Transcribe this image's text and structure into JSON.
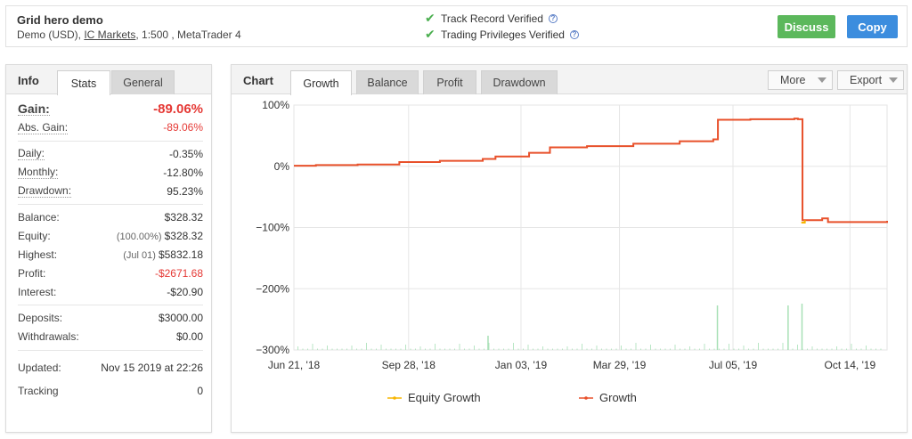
{
  "header": {
    "title": "Grid hero demo",
    "sub_prefix": "Demo (USD), ",
    "broker": "IC Markets",
    "sub_suffix": ", 1:500 , MetaTrader 4",
    "verified1": "Track Record Verified",
    "verified2": "Trading Privileges Verified",
    "discuss": "Discuss",
    "copy": "Copy"
  },
  "info": {
    "tab_head": "Info",
    "tabs": [
      "Stats",
      "General"
    ],
    "gain_label": "Gain:",
    "gain": "-89.06%",
    "abs_gain_label": "Abs. Gain:",
    "abs_gain": "-89.06%",
    "daily_label": "Daily:",
    "daily": "-0.35%",
    "monthly_label": "Monthly:",
    "monthly": "-12.80%",
    "drawdown_label": "Drawdown:",
    "drawdown": "95.23%",
    "balance_label": "Balance:",
    "balance": "$328.32",
    "equity_label": "Equity:",
    "equity_pct": "(100.00%)",
    "equity": "$328.32",
    "highest_label": "Highest:",
    "highest_date": "(Jul 01)",
    "highest": "$5832.18",
    "profit_label": "Profit:",
    "profit": "-$2671.68",
    "interest_label": "Interest:",
    "interest": "-$20.90",
    "deposits_label": "Deposits:",
    "deposits": "$3000.00",
    "withdrawals_label": "Withdrawals:",
    "withdrawals": "$0.00",
    "updated_label": "Updated:",
    "updated": "Nov 15 2019 at 22:26",
    "tracking_label": "Tracking",
    "tracking": "0"
  },
  "chart_panel": {
    "tab_head": "Chart",
    "tabs": [
      "Growth",
      "Balance",
      "Profit",
      "Drawdown"
    ],
    "more": "More",
    "export": "Export"
  },
  "chart_data": {
    "type": "line",
    "x_ticks": [
      "Jun 21, '18",
      "Sep 28, '18",
      "Jan 03, '19",
      "Mar 29, '19",
      "Jul 05, '19",
      "Oct 14, '19"
    ],
    "y_ticks": [
      "100%",
      "0%",
      "−100%",
      "−200%",
      "−300%"
    ],
    "ylim": [
      -300,
      100
    ],
    "x_range": [
      "2018-06-21",
      "2019-11-15"
    ],
    "series": [
      {
        "name": "Growth",
        "color": "#e8502a",
        "points": [
          [
            "2018-06-21",
            1
          ],
          [
            "2018-07-10",
            2
          ],
          [
            "2018-08-15",
            3
          ],
          [
            "2018-09-20",
            7
          ],
          [
            "2018-10-25",
            9
          ],
          [
            "2018-12-01",
            12
          ],
          [
            "2018-12-12",
            16
          ],
          [
            "2019-01-10",
            22
          ],
          [
            "2019-01-28",
            31
          ],
          [
            "2019-03-01",
            33
          ],
          [
            "2019-04-10",
            37
          ],
          [
            "2019-05-20",
            41
          ],
          [
            "2019-06-18",
            44
          ],
          [
            "2019-06-22",
            76
          ],
          [
            "2019-07-20",
            77
          ],
          [
            "2019-08-27",
            78
          ],
          [
            "2019-08-30",
            77
          ],
          [
            "2019-09-03",
            -88
          ],
          [
            "2019-09-20",
            -85
          ],
          [
            "2019-09-25",
            -91
          ],
          [
            "2019-11-15",
            -89
          ]
        ]
      },
      {
        "name": "Equity Growth",
        "color": "#f7b500",
        "points": [
          [
            "2019-09-02",
            -92
          ],
          [
            "2019-09-05",
            -88
          ]
        ]
      }
    ],
    "legend": "bottom-center",
    "grid": true,
    "volume_bars": true
  }
}
